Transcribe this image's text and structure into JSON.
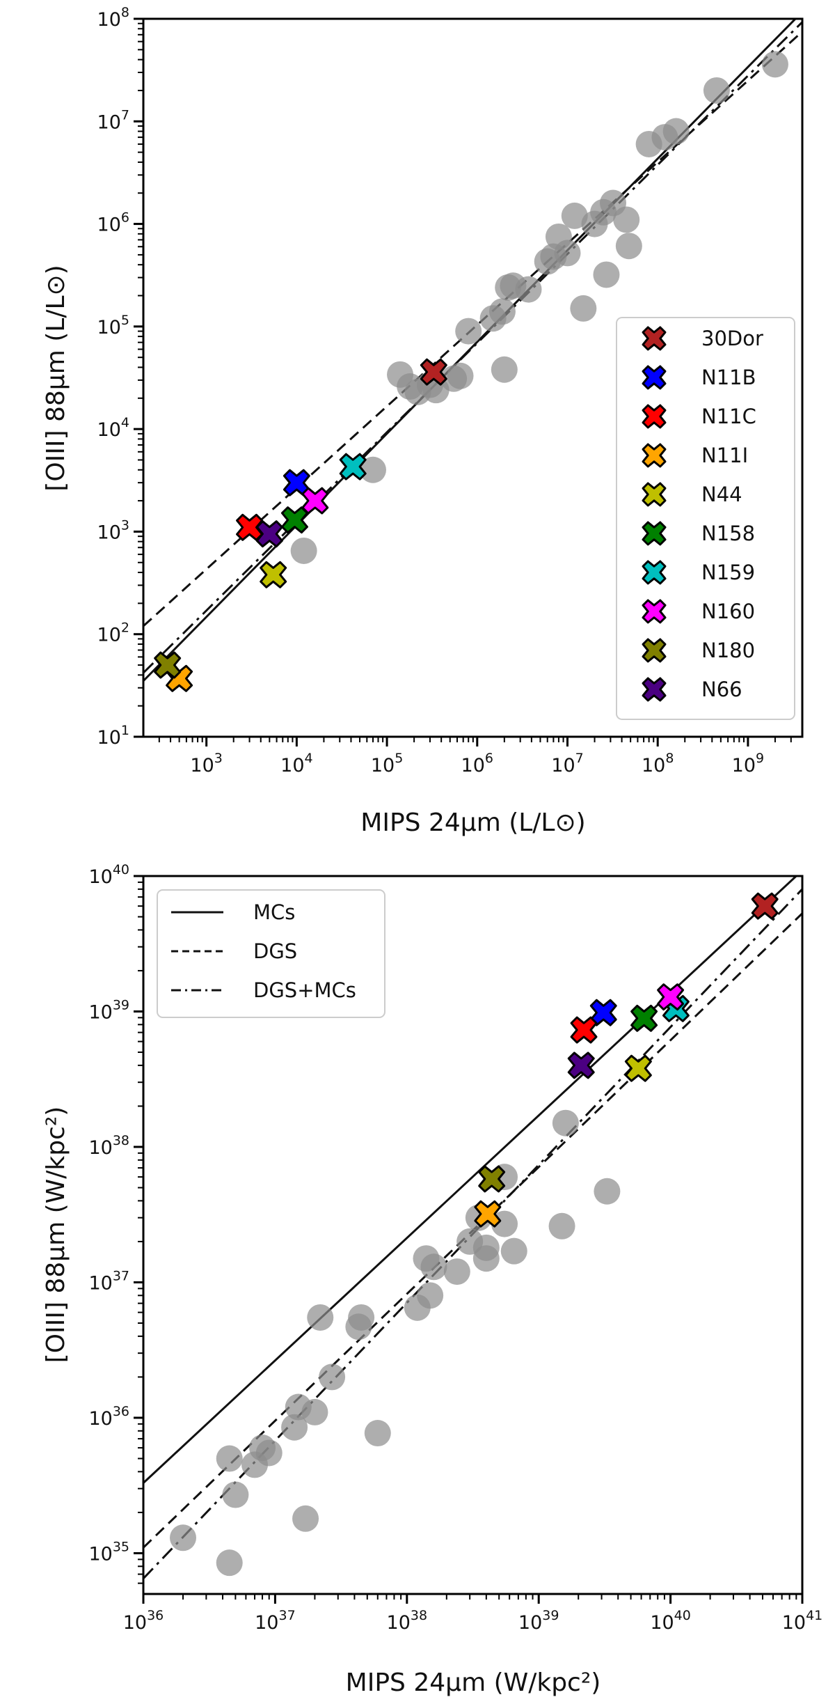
{
  "chart_data": [
    {
      "type": "scatter",
      "xscale": "log",
      "yscale": "log",
      "xlim": [
        200,
        4000000000
      ],
      "ylim": [
        10,
        100000000
      ],
      "xlabel": "MIPS 24μm (L/L⊙)",
      "ylabel": "[OIII] 88μm (L/L⊙)",
      "xticks": [
        {
          "value": 1000,
          "base": "10",
          "exp": "3"
        },
        {
          "value": 10000,
          "base": "10",
          "exp": "4"
        },
        {
          "value": 100000,
          "base": "10",
          "exp": "5"
        },
        {
          "value": 1000000,
          "base": "10",
          "exp": "6"
        },
        {
          "value": 10000000,
          "base": "10",
          "exp": "7"
        },
        {
          "value": 100000000,
          "base": "10",
          "exp": "8"
        },
        {
          "value": 1000000000,
          "base": "10",
          "exp": "9"
        }
      ],
      "yticks": [
        {
          "value": 10,
          "base": "10",
          "exp": "1"
        },
        {
          "value": 100,
          "base": "10",
          "exp": "2"
        },
        {
          "value": 1000,
          "base": "10",
          "exp": "3"
        },
        {
          "value": 10000,
          "base": "10",
          "exp": "4"
        },
        {
          "value": 100000,
          "base": "10",
          "exp": "5"
        },
        {
          "value": 1000000,
          "base": "10",
          "exp": "6"
        },
        {
          "value": 10000000,
          "base": "10",
          "exp": "7"
        },
        {
          "value": 100000000,
          "base": "10",
          "exp": "8"
        }
      ],
      "fits": [
        {
          "name": "MCs",
          "style": "solid",
          "points": [
            [
              200,
              35
            ],
            [
              4000000000,
              117000000
            ]
          ]
        },
        {
          "name": "DGS",
          "style": "dashed",
          "points": [
            [
              200,
              120
            ],
            [
              4000000000,
              75000000
            ]
          ]
        },
        {
          "name": "DGS+MCs",
          "style": "dashdot",
          "points": [
            [
              200,
              42
            ],
            [
              4000000000,
              93000000
            ]
          ]
        }
      ],
      "dgs_points": [
        [
          12000,
          650
        ],
        [
          70000,
          4000
        ],
        [
          140000,
          34000
        ],
        [
          180000,
          26000
        ],
        [
          220000,
          23000
        ],
        [
          300000,
          27000
        ],
        [
          350000,
          24000
        ],
        [
          550000,
          31000
        ],
        [
          650000,
          33000
        ],
        [
          800000,
          90000
        ],
        [
          1500000,
          120000
        ],
        [
          1900000,
          140000
        ],
        [
          2000000,
          38000
        ],
        [
          2200000,
          240000
        ],
        [
          2500000,
          250000
        ],
        [
          3700000,
          230000
        ],
        [
          6000000,
          430000
        ],
        [
          7000000,
          480000
        ],
        [
          8000000,
          750000
        ],
        [
          10000000,
          520000
        ],
        [
          12000000,
          1200000
        ],
        [
          15000000,
          150000
        ],
        [
          20000000,
          1000000
        ],
        [
          25000000,
          1300000
        ],
        [
          27000000,
          320000
        ],
        [
          32000000,
          1600000
        ],
        [
          45000000,
          1100000
        ],
        [
          48000000,
          610000
        ],
        [
          80000000,
          6000000
        ],
        [
          120000000,
          7000000
        ],
        [
          160000000,
          8000000
        ],
        [
          450000000,
          20000000
        ],
        [
          2000000000,
          36000000
        ]
      ],
      "mc_points": [
        {
          "name": "30Dor",
          "color": "#b22222",
          "x": 330000,
          "y": 36000
        },
        {
          "name": "N11B",
          "color": "#0000ff",
          "x": 10000,
          "y": 3000
        },
        {
          "name": "N11C",
          "color": "#ff0000",
          "x": 3000,
          "y": 1100
        },
        {
          "name": "N11I",
          "color": "#ffa500",
          "x": 500,
          "y": 37
        },
        {
          "name": "N44",
          "color": "#bfbf00",
          "x": 5500,
          "y": 380
        },
        {
          "name": "N158",
          "color": "#008000",
          "x": 9500,
          "y": 1300
        },
        {
          "name": "N159",
          "color": "#00bfbf",
          "x": 42000,
          "y": 4300
        },
        {
          "name": "N160",
          "color": "#ff00ff",
          "x": 16000,
          "y": 2000
        },
        {
          "name": "N180",
          "color": "#808000",
          "x": 370,
          "y": 50
        },
        {
          "name": "N66",
          "color": "#4b0082",
          "x": 5000,
          "y": 950
        }
      ],
      "legend": {
        "location": "lower-right",
        "entries": [
          "30Dor",
          "N11B",
          "N11C",
          "N11I",
          "N44",
          "N158",
          "N159",
          "N160",
          "N180",
          "N66"
        ]
      }
    },
    {
      "type": "scatter",
      "xscale": "log",
      "yscale": "log",
      "xlim": [
        1e+36,
        1e+41
      ],
      "ylim": [
        5e+34,
        1e+40
      ],
      "xlabel": "MIPS 24μm (W/kpc²)",
      "ylabel": "[OIII] 88μm (W/kpc²)",
      "xticks": [
        {
          "value": 1e+36,
          "base": "10",
          "exp": "36"
        },
        {
          "value": 1e+37,
          "base": "10",
          "exp": "37"
        },
        {
          "value": 1e+38,
          "base": "10",
          "exp": "38"
        },
        {
          "value": 1e+39,
          "base": "10",
          "exp": "39"
        },
        {
          "value": 1e+40,
          "base": "10",
          "exp": "40"
        },
        {
          "value": 1e+41,
          "base": "10",
          "exp": "41"
        }
      ],
      "yticks": [
        {
          "value": 1e+35,
          "base": "10",
          "exp": "35"
        },
        {
          "value": 1e+36,
          "base": "10",
          "exp": "36"
        },
        {
          "value": 1e+37,
          "base": "10",
          "exp": "37"
        },
        {
          "value": 1e+38,
          "base": "10",
          "exp": "38"
        },
        {
          "value": 1e+39,
          "base": "10",
          "exp": "39"
        },
        {
          "value": 1e+40,
          "base": "10",
          "exp": "40"
        }
      ],
      "fits": [
        {
          "name": "MCs",
          "style": "solid",
          "points": [
            [
              1e+36,
              3.3e+35
            ],
            [
              1e+41,
              1.1e+40
            ]
          ]
        },
        {
          "name": "DGS",
          "style": "dashed",
          "points": [
            [
              1e+36,
              1.1e+35
            ],
            [
              1e+41,
              5.3e+39
            ]
          ]
        },
        {
          "name": "DGS+MCs",
          "style": "dashdot",
          "points": [
            [
              1e+36,
              6.5e+34
            ],
            [
              1e+41,
              8e+39
            ]
          ]
        }
      ],
      "dgs_points": [
        [
          2e+36,
          1.3e+35
        ],
        [
          4.5e+36,
          8.5e+34
        ],
        [
          4.5e+36,
          5e+35
        ],
        [
          5e+36,
          2.7e+35
        ],
        [
          7e+36,
          4.5e+35
        ],
        [
          8e+36,
          6e+35
        ],
        [
          9e+36,
          5.5e+35
        ],
        [
          1.4e+37,
          8.5e+35
        ],
        [
          1.5e+37,
          1.2e+36
        ],
        [
          1.7e+37,
          1.8e+35
        ],
        [
          2e+37,
          1.1e+36
        ],
        [
          2.2e+37,
          5.5e+36
        ],
        [
          2.7e+37,
          2e+36
        ],
        [
          4.3e+37,
          4.7e+36
        ],
        [
          4.5e+37,
          5.5e+36
        ],
        [
          6e+37,
          7.7e+35
        ],
        [
          1.2e+38,
          6.5e+36
        ],
        [
          1.4e+38,
          1.5e+37
        ],
        [
          1.5e+38,
          8e+36
        ],
        [
          1.6e+38,
          1.3e+37
        ],
        [
          2.4e+38,
          1.2e+37
        ],
        [
          3e+38,
          2e+37
        ],
        [
          3.5e+38,
          3e+37
        ],
        [
          4e+38,
          1.8e+37
        ],
        [
          4e+38,
          1.5e+37
        ],
        [
          5.5e+38,
          6e+37
        ],
        [
          5.5e+38,
          2.7e+37
        ],
        [
          6.5e+38,
          1.7e+37
        ],
        [
          1.5e+39,
          2.6e+37
        ],
        [
          1.6e+39,
          1.5e+38
        ],
        [
          3.3e+39,
          4.7e+37
        ]
      ],
      "mc_points": [
        {
          "name": "30Dor",
          "color": "#b22222",
          "x": 5.2e+40,
          "y": 6e+39
        },
        {
          "name": "N11B",
          "color": "#0000ff",
          "x": 3.1e+39,
          "y": 9.8e+38
        },
        {
          "name": "N11C",
          "color": "#ff0000",
          "x": 2.2e+39,
          "y": 7.3e+38
        },
        {
          "name": "N11I",
          "color": "#ffa500",
          "x": 4.1e+38,
          "y": 3.2e+37
        },
        {
          "name": "N44",
          "color": "#bfbf00",
          "x": 5.7e+39,
          "y": 3.8e+38
        },
        {
          "name": "N158",
          "color": "#008000",
          "x": 6.3e+39,
          "y": 8.9e+38
        },
        {
          "name": "N159",
          "color": "#00bfbf",
          "x": 1.1e+40,
          "y": 1.05e+39
        },
        {
          "name": "N160",
          "color": "#ff00ff",
          "x": 1e+40,
          "y": 1.28e+39
        },
        {
          "name": "N180",
          "color": "#808000",
          "x": 4.4e+38,
          "y": 5.8e+37
        },
        {
          "name": "N66",
          "color": "#4b0082",
          "x": 2.1e+39,
          "y": 4e+38
        }
      ],
      "legend": {
        "location": "upper-left",
        "entries": [
          "MCs",
          "DGS",
          "DGS+MCs"
        ]
      }
    }
  ]
}
